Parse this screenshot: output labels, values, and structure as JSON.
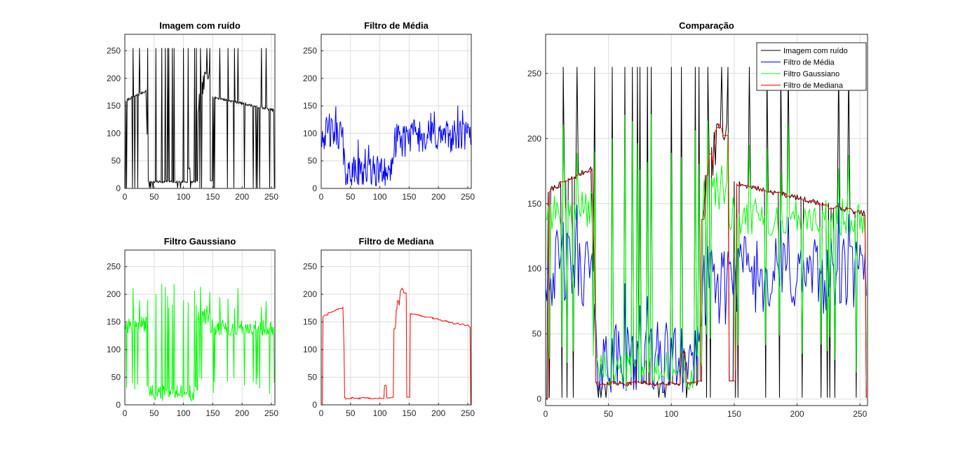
{
  "chart_data": [
    {
      "id": "noisy",
      "type": "line",
      "title": "Imagem com ruído",
      "xlim": [
        0,
        256
      ],
      "ylim": [
        0,
        280
      ],
      "xticks": [
        0,
        50,
        100,
        150,
        200,
        250
      ],
      "yticks": [
        0,
        50,
        100,
        150,
        200,
        250
      ],
      "grid": true,
      "series": [
        {
          "color": "#000000",
          "generator": "noisy"
        }
      ]
    },
    {
      "id": "mean",
      "type": "line",
      "title": "Filtro de Média",
      "xlim": [
        0,
        256
      ],
      "ylim": [
        0,
        280
      ],
      "xticks": [
        0,
        50,
        100,
        150,
        200,
        250
      ],
      "yticks": [
        0,
        50,
        100,
        150,
        200,
        250
      ],
      "grid": true,
      "series": [
        {
          "color": "#0000ff",
          "generator": "mean"
        }
      ]
    },
    {
      "id": "gauss",
      "type": "line",
      "title": "Filtro Gaussiano",
      "xlim": [
        0,
        256
      ],
      "ylim": [
        0,
        280
      ],
      "xticks": [
        0,
        50,
        100,
        150,
        200,
        250
      ],
      "yticks": [
        0,
        50,
        100,
        150,
        200,
        250
      ],
      "grid": true,
      "series": [
        {
          "color": "#00ff00",
          "generator": "gauss"
        }
      ]
    },
    {
      "id": "median",
      "type": "line",
      "title": "Filtro de Mediana",
      "xlim": [
        0,
        256
      ],
      "ylim": [
        0,
        280
      ],
      "xticks": [
        0,
        50,
        100,
        150,
        200,
        250
      ],
      "yticks": [
        0,
        50,
        100,
        150,
        200,
        250
      ],
      "grid": true,
      "series": [
        {
          "color": "#ff0000",
          "generator": "median"
        }
      ]
    },
    {
      "id": "compare",
      "type": "line",
      "title": "Comparação",
      "xlim": [
        0,
        256
      ],
      "ylim": [
        -5,
        280
      ],
      "xticks": [
        0,
        50,
        100,
        150,
        200,
        250
      ],
      "yticks": [
        0,
        50,
        100,
        150,
        200,
        250
      ],
      "grid": true,
      "legend_position": "top-right",
      "series": [
        {
          "name": "Imagem com ruído",
          "color": "#000000",
          "generator": "noisy"
        },
        {
          "name": "Filtro de Média",
          "color": "#0000ff",
          "generator": "mean"
        },
        {
          "name": "Filtro Gaussiano",
          "color": "#00ff00",
          "generator": "gauss"
        },
        {
          "name": "Filtro de Mediana",
          "color": "#ff0000",
          "generator": "median"
        }
      ]
    }
  ]
}
